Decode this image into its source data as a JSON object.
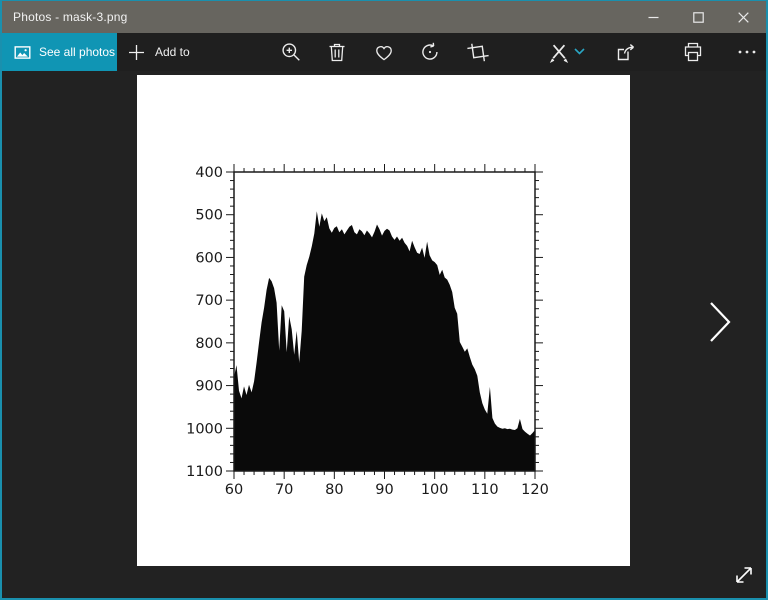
{
  "window": {
    "title": "Photos - mask-3.png",
    "controls": [
      "minimize",
      "maximize",
      "close"
    ]
  },
  "toolbar": {
    "see_all_photos_label": "See all photos",
    "add_to_label": "Add to",
    "icons": [
      "photos-icon",
      "plus-icon",
      "zoom-in-icon",
      "delete-icon",
      "favorite-icon",
      "rotate-icon",
      "crop-icon",
      "edit-and-create-icon",
      "chevron-down-icon",
      "share-icon",
      "print-icon",
      "see-more-icon"
    ]
  },
  "viewer": {
    "filename_shown_in_title": "mask-3.png",
    "next_icon": "chevron-right-icon",
    "expand_icon": "diagonal-expand-icon"
  },
  "colors": {
    "accent": "#1095b4",
    "window_border": "#1a90ae",
    "titlebar_bg": "#67655f",
    "commandbar_bg": "#1f1f1f",
    "content_bg": "#222222",
    "photo_bg": "#ffffff",
    "icon_color": "#ececec",
    "chevron_accent": "#2aa6c4"
  },
  "chart_data": {
    "type": "area",
    "title": "",
    "xlabel": "",
    "ylabel": "",
    "xlim": [
      60,
      120
    ],
    "ylim": [
      400,
      1100
    ],
    "y_axis_note": "y increases downward (400 at top, 1100 at bottom)",
    "xticks": [
      60,
      70,
      80,
      90,
      100,
      110,
      120
    ],
    "yticks": [
      400,
      500,
      600,
      700,
      800,
      900,
      1000,
      1100
    ],
    "x_minor_step": 2,
    "y_minor_step": 20,
    "grid": false,
    "legend": false,
    "fill_color": "#0a0a0a",
    "axis_color": "#1a1a1a",
    "x_start": 60,
    "x_step": 0.5,
    "values": [
      880,
      852,
      912,
      930,
      902,
      922,
      898,
      916,
      890,
      846,
      798,
      752,
      718,
      676,
      648,
      656,
      672,
      706,
      818,
      712,
      726,
      822,
      738,
      768,
      828,
      772,
      846,
      772,
      645,
      618,
      598,
      574,
      544,
      492,
      528,
      497,
      515,
      506,
      532,
      542,
      531,
      527,
      541,
      534,
      546,
      537,
      528,
      524,
      541,
      546,
      534,
      539,
      548,
      537,
      544,
      553,
      540,
      523,
      534,
      549,
      538,
      533,
      537,
      551,
      559,
      551,
      561,
      554,
      566,
      573,
      586,
      561,
      576,
      589,
      592,
      577,
      601,
      563,
      595,
      607,
      611,
      618,
      641,
      629,
      647,
      652,
      664,
      681,
      718,
      732,
      798,
      809,
      821,
      813,
      833,
      851,
      862,
      877,
      916,
      941,
      956,
      966,
      903,
      976,
      989,
      996,
      999,
      1001,
      1000,
      1002,
      1001,
      1003,
      1004,
      1000,
      978,
      1002,
      1008,
      1013,
      1017,
      1011,
      1004
    ]
  }
}
